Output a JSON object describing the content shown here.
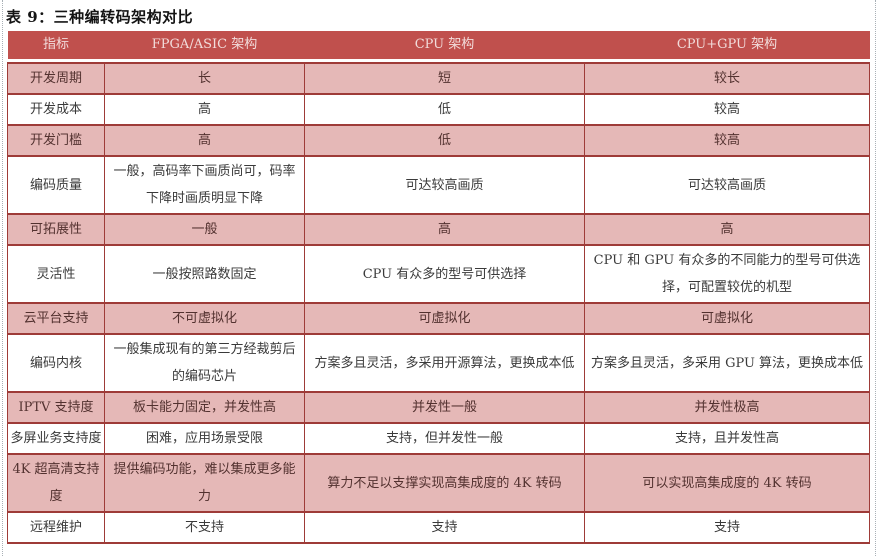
{
  "page": {
    "title": "表 9：三种编转码架构对比"
  },
  "colors": {
    "header_bg": "#C0504D",
    "header_text": "#F2DCDB",
    "shaded_row_bg": "#E5B8B7",
    "border": "#9E3B38",
    "body_text": "#3A3A3A",
    "shaded_text": "#52312F"
  },
  "table": {
    "headers": [
      "指标",
      "FPGA/ASIC 架构",
      "CPU 架构",
      "CPU+GPU 架构"
    ],
    "rows": [
      {
        "label": "开发周期",
        "shaded": true,
        "cells": [
          "长",
          "短",
          "较长"
        ]
      },
      {
        "label": "开发成本",
        "shaded": false,
        "cells": [
          "高",
          "低",
          "较高"
        ]
      },
      {
        "label": "开发门槛",
        "shaded": true,
        "cells": [
          "高",
          "低",
          "较高"
        ]
      },
      {
        "label": "编码质量",
        "shaded": false,
        "cells": [
          "一般，高码率下画质尚可，码率下降时画质明显下降",
          "可达较高画质",
          "可达较高画质"
        ]
      },
      {
        "label": "可拓展性",
        "shaded": true,
        "cells": [
          "一般",
          "高",
          "高"
        ]
      },
      {
        "label": "灵活性",
        "shaded": false,
        "cells": [
          "一般按照路数固定",
          "CPU 有众多的型号可供选择",
          "CPU 和 GPU 有众多的不同能力的型号可供选择，可配置较优的机型"
        ]
      },
      {
        "label": "云平台支持",
        "shaded": true,
        "cells": [
          "不可虚拟化",
          "可虚拟化",
          "可虚拟化"
        ]
      },
      {
        "label": "编码内核",
        "shaded": false,
        "cells": [
          "一般集成现有的第三方经裁剪后的编码芯片",
          "方案多且灵活，多采用开源算法，更换成本低",
          "方案多且灵活，多采用 GPU 算法，更换成本低"
        ]
      },
      {
        "label": "IPTV 支持度",
        "shaded": true,
        "cells": [
          "板卡能力固定，并发性高",
          "并发性一般",
          "并发性极高"
        ]
      },
      {
        "label": "多屏业务支持度",
        "shaded": false,
        "cells": [
          "困难，应用场景受限",
          "支持，但并发性一般",
          "支持，且并发性高"
        ]
      },
      {
        "label": "4K 超高清支持度",
        "shaded": true,
        "cells": [
          "提供编码功能，难以集成更多能力",
          "算力不足以支撑实现高集成度的 4K 转码",
          "可以实现高集成度的 4K 转码"
        ]
      },
      {
        "label": "远程维护",
        "shaded": false,
        "cells": [
          "不支持",
          "支持",
          "支持"
        ]
      }
    ]
  }
}
